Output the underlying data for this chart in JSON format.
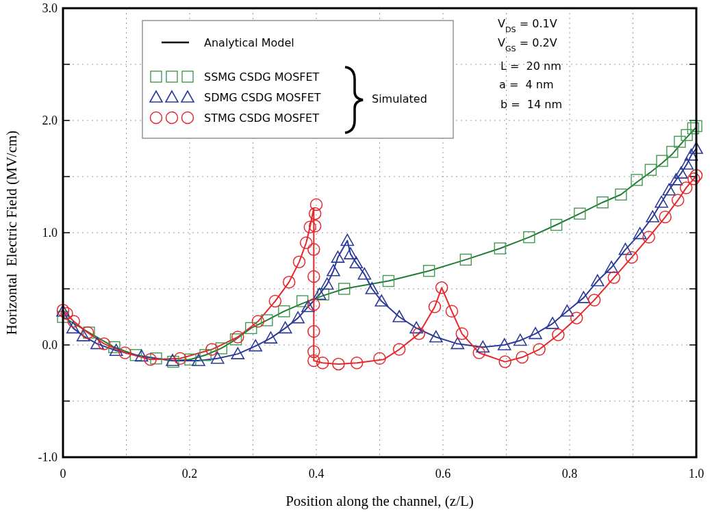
{
  "chart_data": {
    "type": "line",
    "xlabel": "Position along the channel, (z/L)",
    "ylabel": "Horizontal  Electric Field (MV/cm)",
    "annotations": [
      "Analytical Model",
      "Simulated",
      "V$_{DS}$ = 0.1V",
      "V$_{GS}$ = 0.2V",
      "L =  20 nm",
      "a =  4 nm",
      "b =  14 nm"
    ],
    "xlim": [
      0,
      1
    ],
    "ylim": [
      -1,
      3
    ],
    "xticks": [
      {
        "value": 0,
        "label": "0"
      },
      {
        "value": 0.1,
        "label": null
      },
      {
        "value": 0.2,
        "label": "0.2"
      },
      {
        "value": 0.3,
        "label": null
      },
      {
        "value": 0.4,
        "label": "0.4"
      },
      {
        "value": 0.5,
        "label": null
      },
      {
        "value": 0.6,
        "label": "0.6"
      },
      {
        "value": 0.7,
        "label": null
      },
      {
        "value": 0.8,
        "label": "0.8"
      },
      {
        "value": 0.9,
        "label": null
      },
      {
        "value": 1,
        "label": "1.0"
      }
    ],
    "yticks": [
      {
        "value": -1,
        "label": "-1.0"
      },
      {
        "value": -0.5,
        "label": null
      },
      {
        "value": 0,
        "label": "0.0"
      },
      {
        "value": 0.5,
        "label": null
      },
      {
        "value": 1,
        "label": "1.0"
      },
      {
        "value": 1.5,
        "label": null
      },
      {
        "value": 2,
        "label": "2.0"
      },
      {
        "value": 2.5,
        "label": null
      },
      {
        "value": 3,
        "label": "3.0"
      }
    ],
    "grid": true,
    "legend": "top left",
    "series": [
      {
        "color": "#1f7a32",
        "x": [
          0,
          0.041,
          0.081,
          0.115,
          0.147,
          0.174,
          0.201,
          0.225,
          0.25,
          0.273,
          0.297,
          0.322,
          0.349,
          0.378,
          0.411,
          0.444,
          0.514,
          0.578,
          0.636,
          0.69,
          0.736,
          0.779,
          0.816,
          0.852,
          0.881,
          0.906,
          0.928,
          0.946,
          0.962,
          0.974,
          0.985,
          0.995,
          1
        ],
        "values": [
          0.25,
          0.11,
          -0.02,
          -0.09,
          -0.12,
          -0.14,
          -0.13,
          -0.09,
          -0.03,
          0.05,
          0.15,
          0.22,
          0.3,
          0.37,
          0.44,
          0.5,
          0.57,
          0.66,
          0.76,
          0.86,
          0.96,
          1.07,
          1.17,
          1.27,
          1.34,
          1.45,
          1.54,
          1.62,
          1.7,
          1.78,
          1.85,
          1.91,
          1.94
        ]
      },
      {
        "color": "#2b3a98",
        "x": [
          0,
          0.016,
          0.032,
          0.054,
          0.084,
          0.124,
          0.173,
          0.214,
          0.244,
          0.276,
          0.304,
          0.328,
          0.351,
          0.371,
          0.387,
          0.405,
          0.417,
          0.427,
          0.434,
          0.449,
          0.454,
          0.463,
          0.476,
          0.488,
          0.503,
          0.531,
          0.558,
          0.589,
          0.623,
          0.663,
          0.697,
          0.722,
          0.746,
          0.773,
          0.796,
          0.822,
          0.844,
          0.866,
          0.888,
          0.911,
          0.931,
          0.945,
          0.957,
          0.968,
          0.976,
          0.985,
          0.992,
          1
        ],
        "values": [
          0.3,
          0.15,
          0.08,
          0.01,
          -0.05,
          -0.1,
          -0.14,
          -0.14,
          -0.12,
          -0.08,
          -0.01,
          0.06,
          0.15,
          0.24,
          0.34,
          0.45,
          0.54,
          0.66,
          0.78,
          0.93,
          0.81,
          0.73,
          0.63,
          0.5,
          0.39,
          0.25,
          0.15,
          0.07,
          0.01,
          -0.02,
          0,
          0.04,
          0.1,
          0.19,
          0.3,
          0.42,
          0.57,
          0.69,
          0.85,
          0.99,
          1.14,
          1.27,
          1.38,
          1.47,
          1.53,
          1.61,
          1.69,
          1.75
        ]
      },
      {
        "color": "#e8262a",
        "x": [
          0,
          0.017,
          0.039,
          0.065,
          0.098,
          0.138,
          0.185,
          0.235,
          0.276,
          0.308,
          0.335,
          0.357,
          0.373,
          0.384,
          0.39,
          0.396,
          0.396,
          0.41,
          0.435,
          0.464,
          0.506,
          0.531,
          0.562,
          0.587,
          0.598,
          0.614,
          0.63,
          0.657,
          0.698,
          0.725,
          0.752,
          0.782,
          0.811,
          0.839,
          0.87,
          0.898,
          0.925,
          0.951,
          0.971,
          0.984,
          0.996,
          1
        ],
        "values": [
          0.31,
          0.21,
          0.11,
          0.01,
          -0.07,
          -0.13,
          -0.12,
          -0.04,
          0.07,
          0.21,
          0.39,
          0.56,
          0.74,
          0.91,
          1.05,
          1.22,
          -0.14,
          -0.16,
          -0.17,
          -0.16,
          -0.13,
          -0.04,
          0.1,
          0.34,
          0.51,
          0.3,
          0.1,
          -0.07,
          -0.15,
          -0.11,
          -0.04,
          0.09,
          0.24,
          0.4,
          0.6,
          0.78,
          0.96,
          1.14,
          1.29,
          1.4,
          1.48,
          1.51
        ]
      },
      {
        "type": "scatter",
        "name": "SSMG CSDG MOSFET",
        "color": "#3f9a4f",
        "marker": "square",
        "x": [
          0,
          0.041,
          0.081,
          0.115,
          0.147,
          0.174,
          0.201,
          0.225,
          0.25,
          0.273,
          0.297,
          0.322,
          0.349,
          0.378,
          0.411,
          0.444,
          0.514,
          0.578,
          0.636,
          0.69,
          0.736,
          0.779,
          0.816,
          0.852,
          0.881,
          0.906,
          0.928,
          0.946,
          0.962,
          0.974,
          0.985,
          0.995,
          1
        ],
        "values": [
          0.25,
          0.11,
          -0.02,
          -0.09,
          -0.12,
          -0.15,
          -0.13,
          -0.09,
          -0.03,
          0.05,
          0.15,
          0.22,
          0.3,
          0.39,
          0.45,
          0.5,
          0.57,
          0.66,
          0.76,
          0.86,
          0.96,
          1.07,
          1.17,
          1.27,
          1.34,
          1.47,
          1.56,
          1.64,
          1.72,
          1.81,
          1.87,
          1.93,
          1.95
        ]
      },
      {
        "type": "scatter",
        "name": "SDMG CSDG MOSFET",
        "color": "#2b3a98",
        "marker": "triangle",
        "x": [
          0,
          0.016,
          0.032,
          0.054,
          0.084,
          0.124,
          0.173,
          0.214,
          0.244,
          0.276,
          0.304,
          0.328,
          0.351,
          0.371,
          0.387,
          0.405,
          0.417,
          0.427,
          0.434,
          0.449,
          0.454,
          0.463,
          0.476,
          0.488,
          0.503,
          0.531,
          0.558,
          0.589,
          0.623,
          0.663,
          0.697,
          0.722,
          0.746,
          0.773,
          0.796,
          0.822,
          0.844,
          0.866,
          0.888,
          0.911,
          0.931,
          0.945,
          0.957,
          0.968,
          0.976,
          0.985,
          0.992,
          1
        ],
        "values": [
          0.3,
          0.15,
          0.08,
          0.01,
          -0.05,
          -0.1,
          -0.14,
          -0.14,
          -0.12,
          -0.08,
          -0.01,
          0.06,
          0.15,
          0.24,
          0.34,
          0.45,
          0.54,
          0.66,
          0.78,
          0.93,
          0.81,
          0.73,
          0.63,
          0.5,
          0.39,
          0.25,
          0.15,
          0.07,
          0.01,
          -0.02,
          0,
          0.04,
          0.1,
          0.19,
          0.3,
          0.42,
          0.57,
          0.69,
          0.85,
          0.99,
          1.14,
          1.27,
          1.38,
          1.47,
          1.53,
          1.61,
          1.69,
          1.75
        ]
      },
      {
        "type": "scatter",
        "name": "STMG CSDG MOSFET",
        "color": "#e8262a",
        "marker": "circle",
        "x": [
          0,
          0.006,
          0.017,
          0.039,
          0.065,
          0.098,
          0.138,
          0.185,
          0.235,
          0.276,
          0.308,
          0.335,
          0.357,
          0.373,
          0.384,
          0.39,
          0.398,
          0.398,
          0.4,
          0.396,
          0.396,
          0.396,
          0.396,
          0.396,
          0.396,
          0.41,
          0.435,
          0.464,
          0.5,
          0.531,
          0.562,
          0.587,
          0.598,
          0.614,
          0.63,
          0.657,
          0.698,
          0.725,
          0.752,
          0.782,
          0.811,
          0.839,
          0.87,
          0.898,
          0.925,
          0.951,
          0.971,
          0.984,
          0.996,
          1
        ],
        "values": [
          0.31,
          0.28,
          0.21,
          0.11,
          0.01,
          -0.07,
          -0.13,
          -0.12,
          -0.04,
          0.07,
          0.21,
          0.39,
          0.56,
          0.74,
          0.91,
          1.05,
          1.06,
          1.17,
          1.25,
          0.85,
          0.61,
          0.36,
          0.12,
          -0.06,
          -0.14,
          -0.16,
          -0.17,
          -0.16,
          -0.12,
          -0.04,
          0.1,
          0.34,
          0.51,
          0.3,
          0.1,
          -0.07,
          -0.15,
          -0.11,
          -0.04,
          0.09,
          0.24,
          0.4,
          0.6,
          0.78,
          0.96,
          1.14,
          1.29,
          1.4,
          1.48,
          1.51
        ]
      }
    ]
  }
}
